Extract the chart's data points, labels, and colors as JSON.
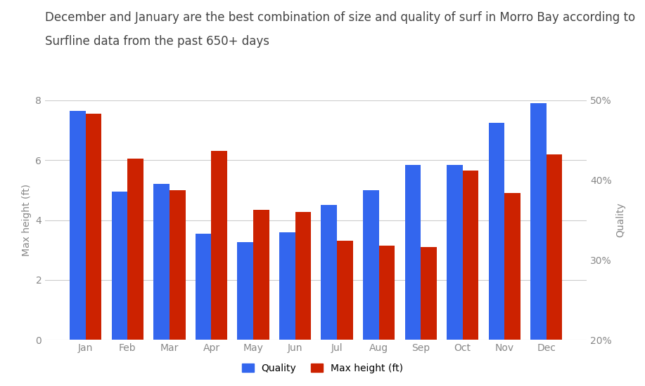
{
  "months": [
    "Jan",
    "Feb",
    "Mar",
    "Apr",
    "May",
    "Jun",
    "Jul",
    "Aug",
    "Sep",
    "Oct",
    "Nov",
    "Dec"
  ],
  "quality": [
    7.65,
    4.95,
    5.2,
    3.55,
    3.25,
    3.6,
    4.5,
    5.0,
    5.85,
    5.85,
    7.25,
    7.9
  ],
  "max_height": [
    7.55,
    6.05,
    5.0,
    6.3,
    4.35,
    4.28,
    3.3,
    3.15,
    3.1,
    5.65,
    4.9,
    6.2
  ],
  "bar_color_quality": "#3366ee",
  "bar_color_height": "#cc2200",
  "title_line1": "December and January are the best combination of size and quality of surf in Morro Bay according to",
  "title_line2": "Surfline data from the past 650+ days",
  "ylabel_left": "Max height (ft)",
  "ylabel_right": "Quality",
  "ylim_left": [
    0,
    8
  ],
  "ylim_right_display": [
    "20%",
    "30%",
    "40%",
    "50%"
  ],
  "yticks_left": [
    0,
    2,
    4,
    6,
    8
  ],
  "yticks_right_vals": [
    0.2,
    0.3,
    0.4,
    0.5
  ],
  "legend_labels": [
    "Quality",
    "Max height (ft)"
  ],
  "title_fontsize": 12,
  "axis_label_fontsize": 10,
  "tick_fontsize": 10,
  "background_color": "#ffffff",
  "grid_color": "#cccccc",
  "bar_width": 0.38
}
